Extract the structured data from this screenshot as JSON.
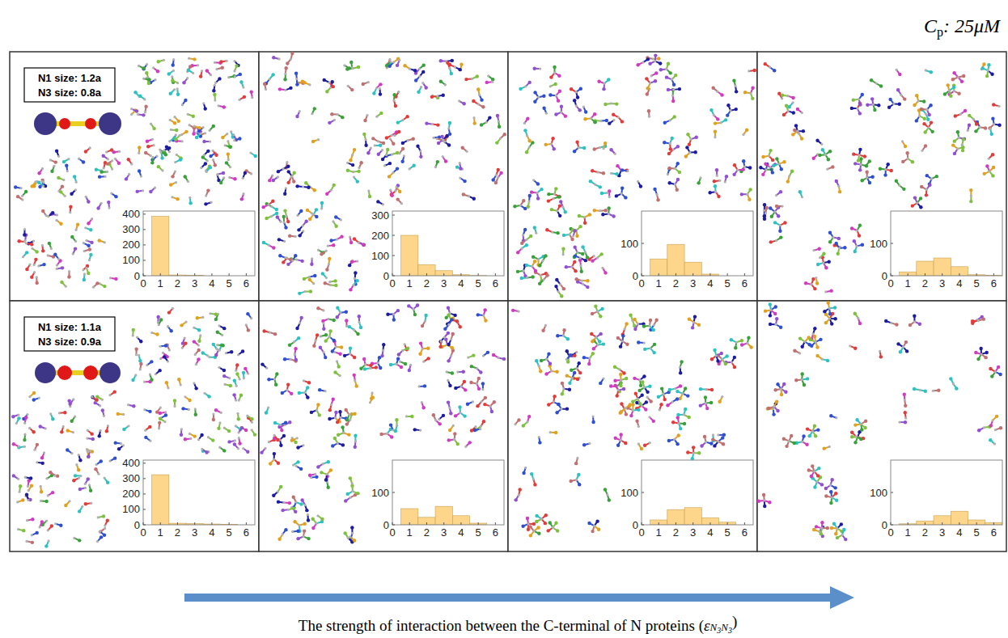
{
  "chart_data": [
    {
      "type": "histogram",
      "bins": [
        0.5,
        1.5,
        2.5,
        3.5,
        4.5,
        5.5,
        6.5
      ],
      "values": [
        385,
        5,
        2,
        0,
        0,
        0
      ],
      "color": "#fdd58b",
      "xlim": [
        0,
        6.5
      ],
      "xticks": [
        0,
        1,
        2,
        3,
        4,
        5,
        6
      ],
      "ylim": [
        0,
        420
      ],
      "yticks": [
        0,
        100,
        200,
        300,
        400
      ]
    },
    {
      "type": "histogram",
      "bins": [
        0.5,
        1.5,
        2.5,
        3.5,
        4.5,
        5.5,
        6.5
      ],
      "values": [
        200,
        55,
        25,
        5,
        1,
        0
      ],
      "color": "#fdd58b",
      "xlim": [
        0,
        6.5
      ],
      "xticks": [
        0,
        1,
        2,
        3,
        4,
        5,
        6
      ],
      "ylim": [
        0,
        320
      ],
      "yticks": [
        0,
        100,
        200,
        300
      ]
    },
    {
      "type": "histogram",
      "bins": [
        0.5,
        1.5,
        2.5,
        3.5,
        4.5,
        5.5,
        6.5
      ],
      "values": [
        52,
        97,
        42,
        5,
        0,
        0
      ],
      "color": "#fdd58b",
      "xlim": [
        0,
        6.5
      ],
      "xticks": [
        0,
        1,
        2,
        3,
        4,
        5,
        6
      ],
      "ylim": [
        0,
        200
      ],
      "yticks": [
        0,
        100
      ]
    },
    {
      "type": "histogram",
      "bins": [
        0.5,
        1.5,
        2.5,
        3.5,
        4.5,
        5.5,
        6.5
      ],
      "values": [
        12,
        45,
        55,
        28,
        3,
        1
      ],
      "color": "#fdd58b",
      "xlim": [
        0,
        6.5
      ],
      "xticks": [
        0,
        1,
        2,
        3,
        4,
        5,
        6
      ],
      "ylim": [
        0,
        200
      ],
      "yticks": [
        0,
        100
      ]
    },
    {
      "type": "histogram",
      "bins": [
        0.5,
        1.5,
        2.5,
        3.5,
        4.5,
        5.5,
        6.5
      ],
      "values": [
        325,
        10,
        8,
        5,
        3,
        0
      ],
      "color": "#fdd58b",
      "xlim": [
        0,
        6.5
      ],
      "xticks": [
        0,
        1,
        2,
        3,
        4,
        5,
        6
      ],
      "ylim": [
        0,
        420
      ],
      "yticks": [
        0,
        100,
        200,
        300,
        400
      ]
    },
    {
      "type": "histogram",
      "bins": [
        0.5,
        1.5,
        2.5,
        3.5,
        4.5,
        5.5,
        6.5
      ],
      "values": [
        50,
        23,
        57,
        28,
        5,
        0
      ],
      "color": "#fdd58b",
      "xlim": [
        0,
        6.5
      ],
      "xticks": [
        0,
        1,
        2,
        3,
        4,
        5,
        6
      ],
      "ylim": [
        0,
        200
      ],
      "yticks": [
        0,
        100
      ]
    },
    {
      "type": "histogram",
      "bins": [
        0.5,
        1.5,
        2.5,
        3.5,
        4.5,
        5.5,
        6.5
      ],
      "values": [
        15,
        47,
        53,
        22,
        8,
        0
      ],
      "color": "#fdd58b",
      "xlim": [
        0,
        6.5
      ],
      "xticks": [
        0,
        1,
        2,
        3,
        4,
        5,
        6
      ],
      "ylim": [
        0,
        200
      ],
      "yticks": [
        0,
        100
      ]
    },
    {
      "type": "histogram",
      "bins": [
        0.5,
        1.5,
        2.5,
        3.5,
        4.5,
        5.5,
        6.5
      ],
      "values": [
        3,
        12,
        28,
        42,
        15,
        7
      ],
      "color": "#fdd58b",
      "xlim": [
        0,
        6.5
      ],
      "xticks": [
        0,
        1,
        2,
        3,
        4,
        5,
        6
      ],
      "ylim": [
        0,
        200
      ],
      "yticks": [
        0,
        100
      ]
    }
  ],
  "figure": {
    "concentration": {
      "symbol": "C",
      "subscript": "p",
      "text": ": 25μM"
    },
    "rows": [
      {
        "n1": "N1 size: 1.2a",
        "n3": "N3 size: 0.8a"
      },
      {
        "n1": "N1 size: 1.1a",
        "n3": "N3 size: 0.9a"
      }
    ],
    "caption": {
      "text": "The strength of interaction between the C-terminal of N proteins (",
      "symbol": "ε",
      "subscript": "N3N3",
      "end": ")"
    }
  }
}
